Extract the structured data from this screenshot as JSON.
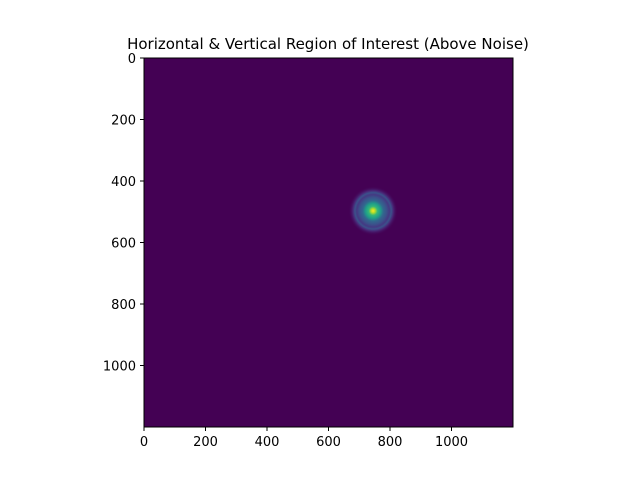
{
  "chart_data": {
    "type": "heatmap",
    "title": "Horizontal & Vertical Region of Interest (Above Noise)",
    "xlabel": "",
    "ylabel": "",
    "xlim": [
      0,
      1200
    ],
    "ylim": [
      1200,
      0
    ],
    "x_ticks": [
      0,
      200,
      400,
      600,
      800,
      1000
    ],
    "y_ticks": [
      0,
      200,
      400,
      600,
      800,
      1000
    ],
    "x_tick_labels": [
      "0",
      "200",
      "400",
      "600",
      "800",
      "1000"
    ],
    "y_tick_labels": [
      "0",
      "200",
      "400",
      "600",
      "800",
      "1000"
    ],
    "colormap": "viridis",
    "background_color": "#440154",
    "grid": false,
    "hotspot": {
      "center_x": 745,
      "center_y": 497,
      "core_radius": 20,
      "halo_radius": 80,
      "peak_color": "#fde725"
    }
  }
}
